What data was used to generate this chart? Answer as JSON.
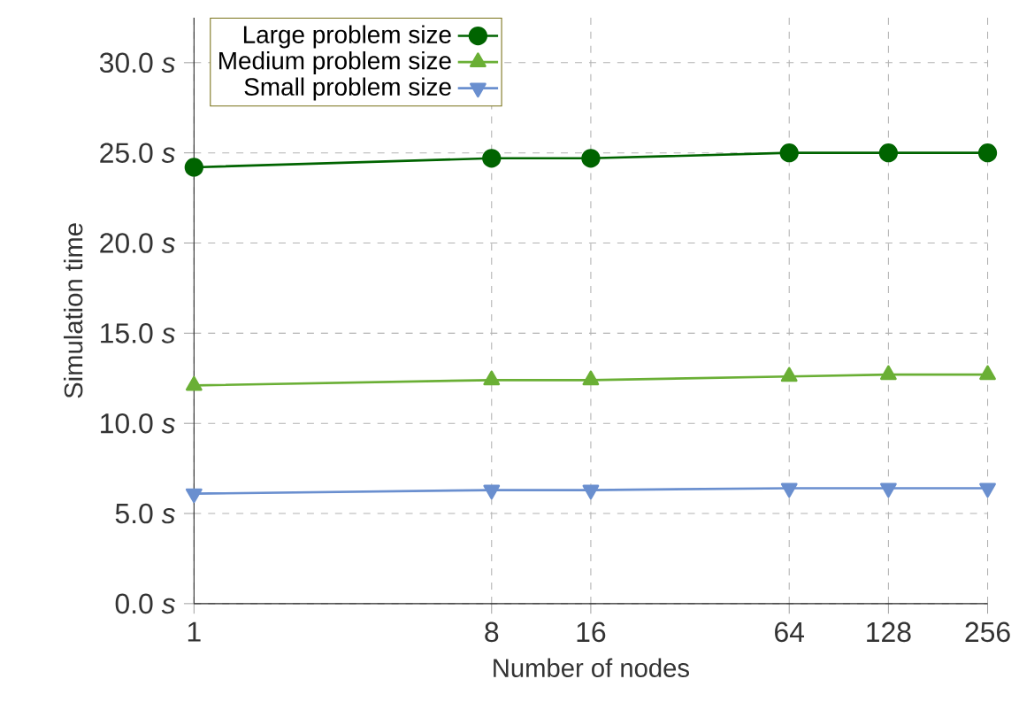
{
  "chart_data": {
    "type": "line",
    "xlabel": "Number of nodes",
    "ylabel": "Simulation time",
    "x": [
      1,
      8,
      16,
      64,
      128,
      256
    ],
    "series": [
      {
        "name": "Large problem size",
        "color": "#006400",
        "marker": "circle",
        "values": [
          24.2,
          24.7,
          24.7,
          25.0,
          25.0,
          25.0
        ]
      },
      {
        "name": "Medium problem size",
        "color": "#6aaf35",
        "marker": "triangle",
        "values": [
          12.1,
          12.4,
          12.4,
          12.6,
          12.7,
          12.7
        ]
      },
      {
        "name": "Small problem size",
        "color": "#6a8fcf",
        "marker": "triangle-down",
        "values": [
          6.1,
          6.3,
          6.3,
          6.4,
          6.4,
          6.4
        ]
      }
    ],
    "log": "x",
    "xlim": [
      1,
      256
    ],
    "xticks": [
      1,
      8,
      16,
      64,
      128,
      256
    ],
    "ylim": [
      0,
      32.5
    ],
    "yticks": [
      {
        "value": 0,
        "label": "0.0 *s*"
      },
      {
        "value": 5,
        "label": "5.0 *s*"
      },
      {
        "value": 10,
        "label": "10.0 *s*"
      },
      {
        "value": 15,
        "label": "15.0 *s*"
      },
      {
        "value": 20,
        "label": "20.0 *s*"
      },
      {
        "value": 25,
        "label": "25.0 *s*"
      },
      {
        "value": 30,
        "label": "30.0 *s*"
      }
    ],
    "grid": true,
    "legend": "top left",
    "line_style": "solid"
  }
}
